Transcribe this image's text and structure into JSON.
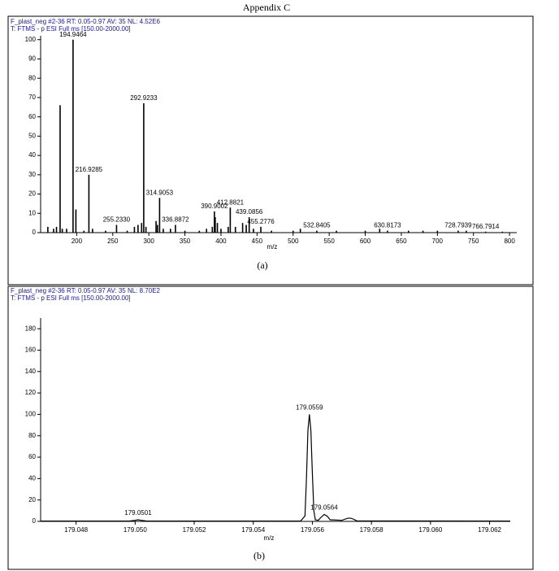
{
  "title": "Appendix C",
  "chart_data": [
    {
      "type": "stick",
      "header": [
        "F_plast_neg #2-36   RT: 0.05-0.97   AV: 35   NL: 4.52E6",
        "T: FTMS - p ESI Full ms [150.00-2000.00]"
      ],
      "xlabel": "m/z",
      "caption": "(a)",
      "color": "#000000",
      "xlim": [
        150,
        810
      ],
      "ylim": [
        0,
        102
      ],
      "xticks": [
        200,
        250,
        300,
        350,
        400,
        450,
        500,
        550,
        600,
        650,
        700,
        750,
        800
      ],
      "yticks": [
        0,
        10,
        20,
        30,
        40,
        50,
        60,
        70,
        80,
        90,
        100
      ],
      "x": [
        160,
        168,
        172,
        177,
        180,
        186,
        194.9464,
        198.9,
        210,
        216.9285,
        222,
        240,
        255.233,
        270,
        280,
        285,
        290,
        292.9233,
        296,
        310,
        312,
        314.9053,
        320,
        330,
        336.8872,
        350,
        370,
        380,
        388,
        390.9002,
        392,
        395,
        400,
        410,
        412.8821,
        420,
        430,
        435,
        439.0856,
        445,
        455.2776,
        470,
        500,
        510,
        532.8405,
        560,
        600,
        620,
        630.8173,
        660,
        680,
        700,
        728.7939,
        740,
        766.7914,
        790
      ],
      "values": [
        3,
        2,
        3,
        66,
        2,
        2,
        100,
        12,
        1,
        30,
        2,
        1,
        4,
        1,
        3,
        4,
        5,
        67,
        3,
        6,
        4,
        18,
        2,
        2,
        4,
        1,
        1,
        2,
        3,
        11,
        8,
        5,
        2,
        3,
        13,
        3,
        5,
        4,
        8,
        2,
        3,
        1,
        1,
        2,
        1,
        1,
        1,
        2,
        1,
        1,
        1,
        1,
        1,
        1,
        0.5,
        0.5
      ],
      "x_labels": [
        null,
        null,
        null,
        null,
        null,
        null,
        "194.9464",
        null,
        null,
        "216.9285",
        null,
        null,
        "255.2330",
        null,
        null,
        null,
        null,
        "292.9233",
        null,
        null,
        null,
        "314.9053",
        null,
        null,
        "336.8872",
        null,
        null,
        null,
        null,
        "390.9002",
        null,
        null,
        null,
        null,
        "412.8821",
        null,
        null,
        null,
        "439.0856",
        null,
        "455.2776",
        null,
        null,
        null,
        "532.8405",
        null,
        null,
        null,
        "630.8173",
        null,
        null,
        null,
        "728.7939",
        null,
        "766.7914",
        null
      ]
    },
    {
      "type": "line",
      "header": [
        "F_plast_neg #2-36   RT: 0.05-0.97   AV: 35   NL: 8.70E2",
        "T: FTMS - p ESI Full ms [150.00-2000.00]"
      ],
      "xlabel": "m/z",
      "caption": "(b)",
      "color": "#000000",
      "xlim": [
        179.0468,
        179.0627
      ],
      "ylim": [
        0,
        190
      ],
      "xticks": [
        179.048,
        {
          "value": 179.05,
          "label": "179.050"
        },
        179.052,
        179.054,
        179.056,
        179.058,
        {
          "value": 179.06,
          "label": "179.060"
        },
        179.062
      ],
      "yticks": [
        0,
        20,
        40,
        60,
        80,
        100,
        120,
        140,
        160,
        180
      ],
      "x": [
        179.0468,
        179.0498,
        179.05,
        179.0501,
        179.0502,
        179.0504,
        179.0556,
        179.05575,
        179.0558,
        179.05585,
        179.0559,
        179.05595,
        179.056,
        179.05605,
        179.0561,
        179.0562,
        179.0563,
        179.0564,
        179.0565,
        179.0566,
        179.057,
        179.0572,
        179.0573,
        179.0574,
        179.0575,
        179.0627
      ],
      "values": [
        0.3,
        0.3,
        1,
        1.5,
        1,
        0.3,
        0.3,
        5,
        40,
        85,
        100,
        85,
        45,
        10,
        1.5,
        1,
        4,
        6.5,
        5,
        1.5,
        1,
        3,
        3,
        2,
        0.5,
        0.3
      ],
      "annotations": [
        {
          "text": "179.0501",
          "x": 179.0501,
          "y": 1.5
        },
        {
          "text": "179.0559",
          "x": 179.0559,
          "y": 100
        },
        {
          "text": "179.0564",
          "x": 179.0564,
          "y": 6.5
        }
      ]
    }
  ]
}
